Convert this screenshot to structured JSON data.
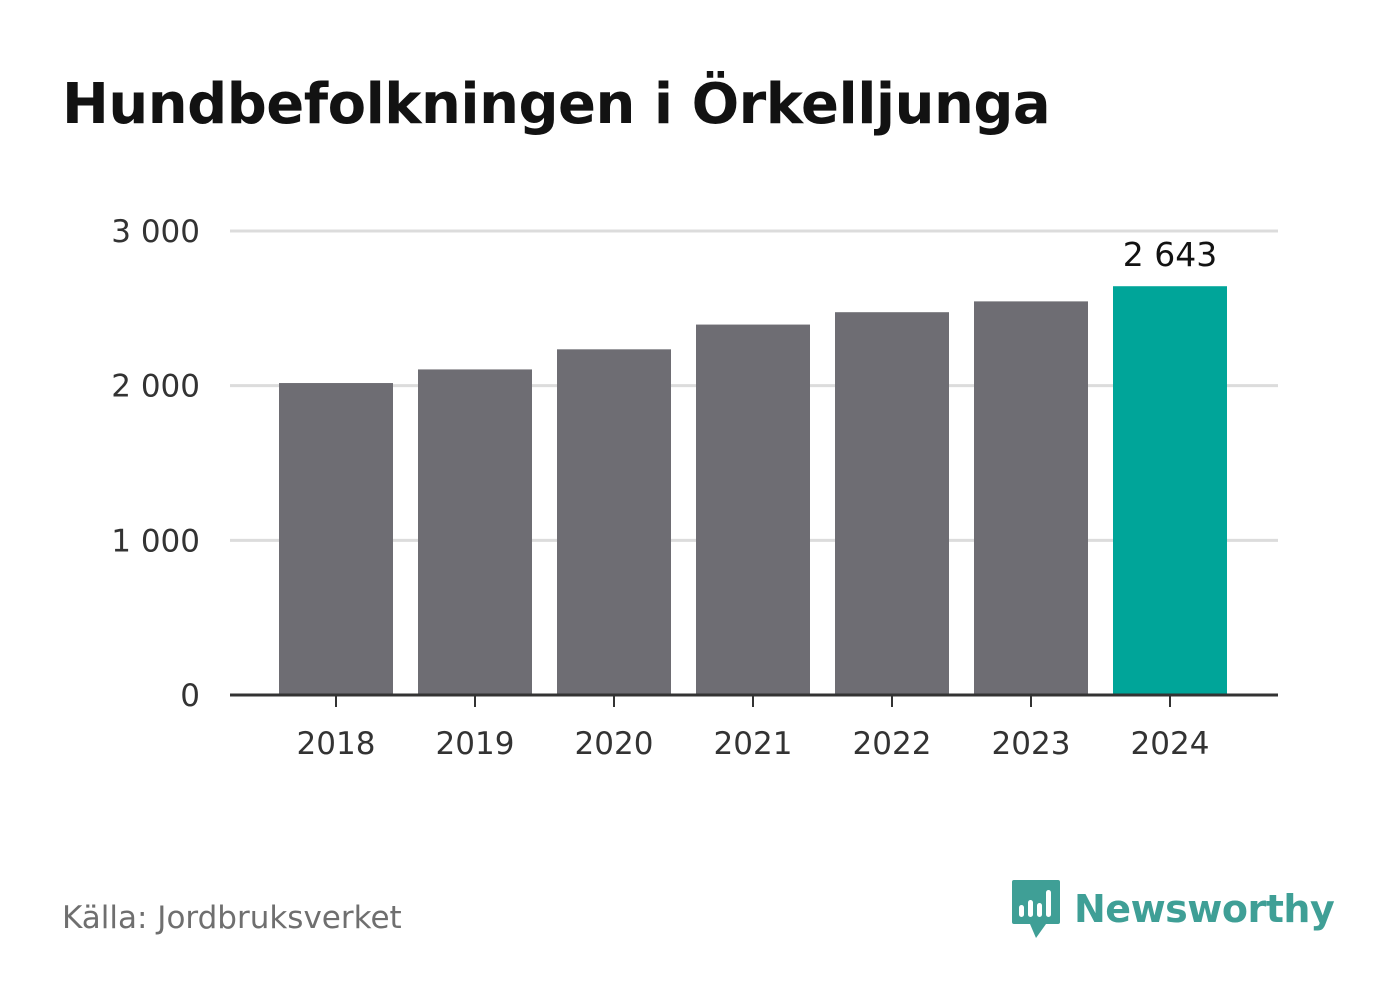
{
  "title": "Hundbefolkningen i Örkelljunga",
  "source": "Källa: Jordbruksverket",
  "brand": {
    "name": "Newsworthy",
    "icon": "newsworthy-logo-icon",
    "color": "#3f9f96"
  },
  "colors": {
    "bar": "#6e6d73",
    "highlight": "#00a599",
    "grid": "#dcdcdc",
    "axis": "#333333",
    "text": "#333333"
  },
  "chart_data": {
    "type": "bar",
    "categories": [
      "2018",
      "2019",
      "2020",
      "2021",
      "2022",
      "2023",
      "2024"
    ],
    "values": [
      2017,
      2105,
      2235,
      2395,
      2475,
      2545,
      2643
    ],
    "highlight_index": 6,
    "data_labels": [
      {
        "index": 6,
        "text": "2 643"
      }
    ],
    "yticks": [
      {
        "value": 0,
        "label": "0"
      },
      {
        "value": 1000,
        "label": "1 000"
      },
      {
        "value": 2000,
        "label": "2 000"
      },
      {
        "value": 3000,
        "label": "3 000"
      }
    ],
    "ylim": [
      0,
      3000
    ],
    "grid": true
  }
}
